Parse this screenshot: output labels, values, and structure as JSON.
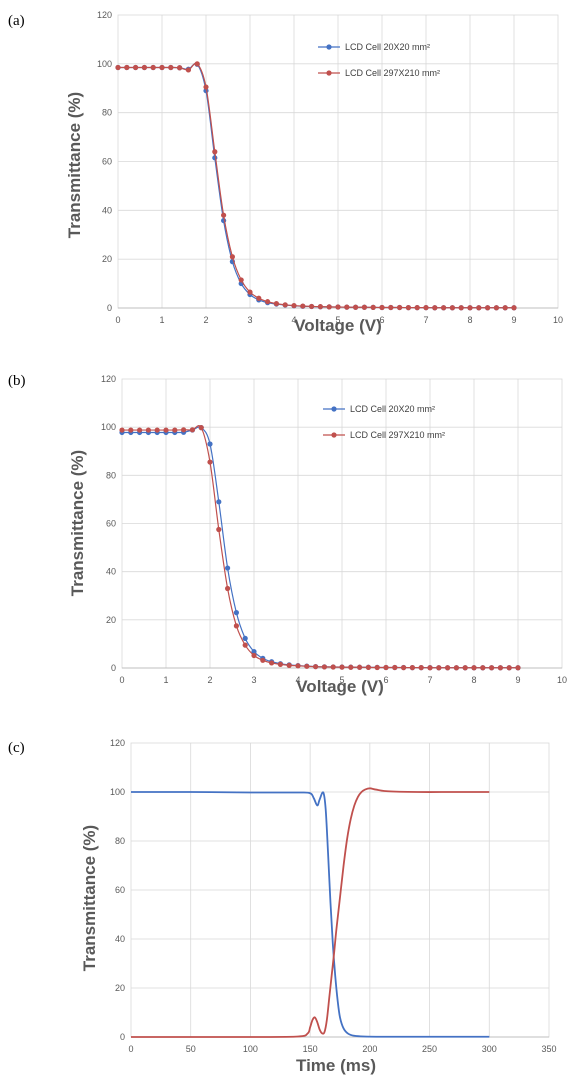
{
  "chart_data": [
    {
      "panel": "(a)",
      "type": "line",
      "xlabel": "Voltage (V)",
      "ylabel": "Transmittance (%)",
      "xlim": [
        0,
        10
      ],
      "ylim": [
        0,
        120
      ],
      "xticks": [
        "0",
        "1",
        "2",
        "3",
        "4",
        "5",
        "6",
        "7",
        "8",
        "9",
        "10"
      ],
      "yticks": [
        "0",
        "20",
        "40",
        "60",
        "80",
        "100",
        "120"
      ],
      "legend": "top-right",
      "markers": true,
      "grid": true,
      "series": [
        {
          "name": "LCD Cell 20X20 mm²",
          "color": "#4472c4",
          "x": [
            0,
            0.2,
            0.4,
            0.6,
            0.8,
            1.0,
            1.2,
            1.4,
            1.6,
            1.8,
            2.0,
            2.2,
            2.4,
            2.6,
            2.8,
            3.0,
            3.2,
            3.4,
            3.6,
            3.8,
            4.0,
            4.2,
            4.4,
            4.6,
            4.8,
            5.0,
            5.2,
            5.4,
            5.6,
            5.8,
            6.0,
            6.2,
            6.4,
            6.6,
            6.8,
            7.0,
            7.2,
            7.4,
            7.6,
            7.8,
            8.0,
            8.2,
            8.4,
            8.6,
            8.8,
            9.0
          ],
          "y": [
            98.5,
            98.5,
            98.5,
            98.5,
            98.5,
            98.5,
            98.5,
            98.4,
            97.8,
            99.8,
            89.0,
            61.5,
            35.8,
            19.0,
            10.0,
            5.5,
            3.3,
            2.2,
            1.6,
            1.2,
            0.9,
            0.7,
            0.6,
            0.5,
            0.45,
            0.4,
            0.35,
            0.3,
            0.3,
            0.25,
            0.2,
            0.2,
            0.2,
            0.15,
            0.15,
            0.15,
            0.1,
            0.1,
            0.1,
            0.1,
            0.1,
            0.1,
            0.1,
            0.1,
            0.1,
            0.1
          ]
        },
        {
          "name": "LCD Cell 297X210 mm²",
          "color": "#c0504d",
          "x": [
            0,
            0.2,
            0.4,
            0.6,
            0.8,
            1.0,
            1.2,
            1.4,
            1.6,
            1.8,
            2.0,
            2.2,
            2.4,
            2.6,
            2.8,
            3.0,
            3.2,
            3.4,
            3.6,
            3.8,
            4.0,
            4.2,
            4.4,
            4.6,
            4.8,
            5.0,
            5.2,
            5.4,
            5.6,
            5.8,
            6.0,
            6.2,
            6.4,
            6.6,
            6.8,
            7.0,
            7.2,
            7.4,
            7.6,
            7.8,
            8.0,
            8.2,
            8.4,
            8.6,
            8.8,
            9.0
          ],
          "y": [
            98.5,
            98.5,
            98.5,
            98.5,
            98.5,
            98.5,
            98.5,
            98.4,
            97.5,
            100.0,
            90.5,
            64.0,
            38.0,
            21.0,
            11.5,
            6.5,
            4.0,
            2.6,
            1.8,
            1.3,
            1.0,
            0.8,
            0.65,
            0.55,
            0.45,
            0.4,
            0.35,
            0.3,
            0.3,
            0.25,
            0.2,
            0.2,
            0.2,
            0.15,
            0.15,
            0.15,
            0.1,
            0.1,
            0.1,
            0.1,
            0.1,
            0.1,
            0.1,
            0.1,
            0.1,
            0.1
          ]
        }
      ]
    },
    {
      "panel": "(b)",
      "type": "line",
      "xlabel": "Voltage (V)",
      "ylabel": "Transmittance (%)",
      "xlim": [
        0,
        10
      ],
      "ylim": [
        0,
        120
      ],
      "xticks": [
        "0",
        "1",
        "2",
        "3",
        "4",
        "5",
        "6",
        "7",
        "8",
        "9",
        "10"
      ],
      "yticks": [
        "0",
        "20",
        "40",
        "60",
        "80",
        "100",
        "120"
      ],
      "legend": "top-right",
      "markers": true,
      "grid": true,
      "series": [
        {
          "name": "LCD Cell 20X20 mm²",
          "color": "#4472c4",
          "x": [
            0,
            0.2,
            0.4,
            0.6,
            0.8,
            1.0,
            1.2,
            1.4,
            1.6,
            1.8,
            2.0,
            2.2,
            2.4,
            2.6,
            2.8,
            3.0,
            3.2,
            3.4,
            3.6,
            3.8,
            4.0,
            4.2,
            4.4,
            4.6,
            4.8,
            5.0,
            5.2,
            5.4,
            5.6,
            5.8,
            6.0,
            6.2,
            6.4,
            6.6,
            6.8,
            7.0,
            7.2,
            7.4,
            7.6,
            7.8,
            8.0,
            8.2,
            8.4,
            8.6,
            8.8,
            9.0
          ],
          "y": [
            97.8,
            97.8,
            97.8,
            97.8,
            97.8,
            97.8,
            97.8,
            97.9,
            98.8,
            99.8,
            93.0,
            69.0,
            41.5,
            23.0,
            12.3,
            6.8,
            4.0,
            2.6,
            1.8,
            1.3,
            1.0,
            0.8,
            0.6,
            0.5,
            0.45,
            0.4,
            0.35,
            0.3,
            0.3,
            0.25,
            0.2,
            0.2,
            0.2,
            0.15,
            0.15,
            0.15,
            0.1,
            0.1,
            0.1,
            0.1,
            0.1,
            0.1,
            0.1,
            0.1,
            0.1,
            0.1
          ]
        },
        {
          "name": "LCD Cell 297X210 mm²",
          "color": "#c0504d",
          "x": [
            0,
            0.2,
            0.4,
            0.6,
            0.8,
            1.0,
            1.2,
            1.4,
            1.6,
            1.8,
            2.0,
            2.2,
            2.4,
            2.6,
            2.8,
            3.0,
            3.2,
            3.4,
            3.6,
            3.8,
            4.0,
            4.2,
            4.4,
            4.6,
            4.8,
            5.0,
            5.2,
            5.4,
            5.6,
            5.8,
            6.0,
            6.2,
            6.4,
            6.6,
            6.8,
            7.0,
            7.2,
            7.4,
            7.6,
            7.8,
            8.0,
            8.2,
            8.4,
            8.6,
            8.8,
            9.0
          ],
          "y": [
            98.8,
            98.8,
            98.8,
            98.8,
            98.8,
            98.8,
            98.8,
            98.9,
            98.9,
            99.8,
            85.5,
            57.5,
            33.0,
            17.5,
            9.5,
            5.2,
            3.2,
            2.1,
            1.5,
            1.1,
            0.9,
            0.7,
            0.55,
            0.45,
            0.4,
            0.35,
            0.3,
            0.3,
            0.25,
            0.2,
            0.2,
            0.2,
            0.15,
            0.15,
            0.15,
            0.1,
            0.1,
            0.1,
            0.1,
            0.1,
            0.1,
            0.1,
            0.1,
            0.1,
            0.1,
            0.1
          ]
        }
      ]
    },
    {
      "panel": "(c)",
      "type": "line",
      "xlabel": "Time (ms)",
      "ylabel": "Transmittance (%)",
      "xlim": [
        0,
        350
      ],
      "ylim": [
        0,
        120
      ],
      "xticks": [
        "0",
        "50",
        "100",
        "150",
        "200",
        "250",
        "300",
        "350"
      ],
      "yticks": [
        "0",
        "20",
        "40",
        "60",
        "80",
        "100",
        "120"
      ],
      "markers": false,
      "grid": true,
      "series": [
        {
          "color": "#4472c4",
          "x": [
            0,
            50,
            100,
            140,
            150,
            153,
            156,
            158,
            161,
            163,
            165,
            167,
            169,
            171,
            173,
            175,
            178,
            182,
            187,
            195,
            210,
            250,
            300
          ],
          "y": [
            100,
            100,
            99.8,
            99.8,
            99.5,
            97.5,
            94.5,
            97,
            99.8,
            93,
            75,
            55,
            38,
            25,
            15,
            8,
            3.5,
            1.3,
            0.5,
            0.2,
            0.1,
            0.1,
            0.1
          ]
        },
        {
          "color": "#c0504d",
          "x": [
            0,
            50,
            100,
            140,
            148,
            150,
            152,
            154,
            156,
            158,
            160,
            162,
            164,
            166,
            168,
            170,
            172,
            175,
            178,
            181,
            184,
            187,
            190,
            193,
            196,
            200,
            205,
            215,
            240,
            270,
            300
          ],
          "y": [
            0,
            0,
            0,
            0.2,
            1.5,
            4,
            7,
            8,
            6,
            3,
            1.5,
            2,
            7,
            16,
            25,
            34,
            44,
            57,
            70,
            81,
            89,
            94.5,
            98,
            100,
            101,
            101.5,
            101,
            100.3,
            100,
            100,
            100
          ]
        }
      ]
    }
  ]
}
